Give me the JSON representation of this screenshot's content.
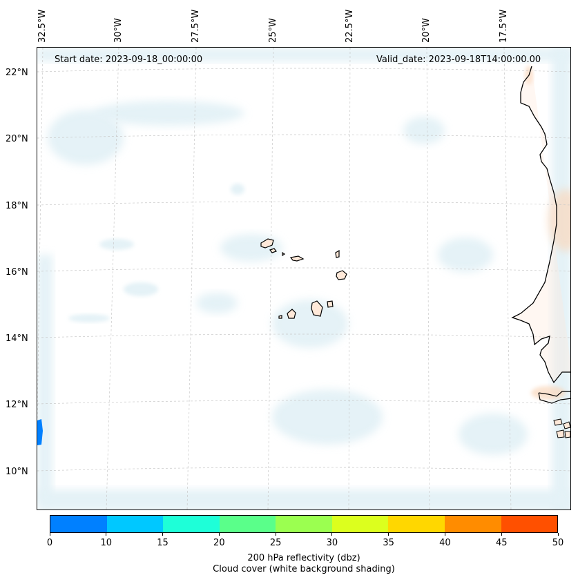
{
  "map": {
    "start_date": "Start date: 2023-09-18_00:00:00",
    "valid_date": "Valid_date: 2023-09-18T14:00:00.00",
    "lon_labels": [
      "32.5°W",
      "30°W",
      "27.5°W",
      "25°W",
      "22.5°W",
      "20°W",
      "17.5°W"
    ],
    "lat_labels": [
      "22°N",
      "20°N",
      "18°N",
      "16°N",
      "14°N",
      "12°N",
      "10°N"
    ]
  },
  "colorbar": {
    "ticks": [
      "0",
      "10",
      "15",
      "20",
      "25",
      "30",
      "35",
      "40",
      "45",
      "50"
    ],
    "colors": [
      "#0080ff",
      "#00c8ff",
      "#1effd8",
      "#5aff8a",
      "#9bff50",
      "#dcff1e",
      "#ffd700",
      "#ff8c00",
      "#ff5000"
    ],
    "label_line1": "200 hPa reflectivity (dbz)",
    "label_line2": "Cloud cover (white background shading)"
  }
}
